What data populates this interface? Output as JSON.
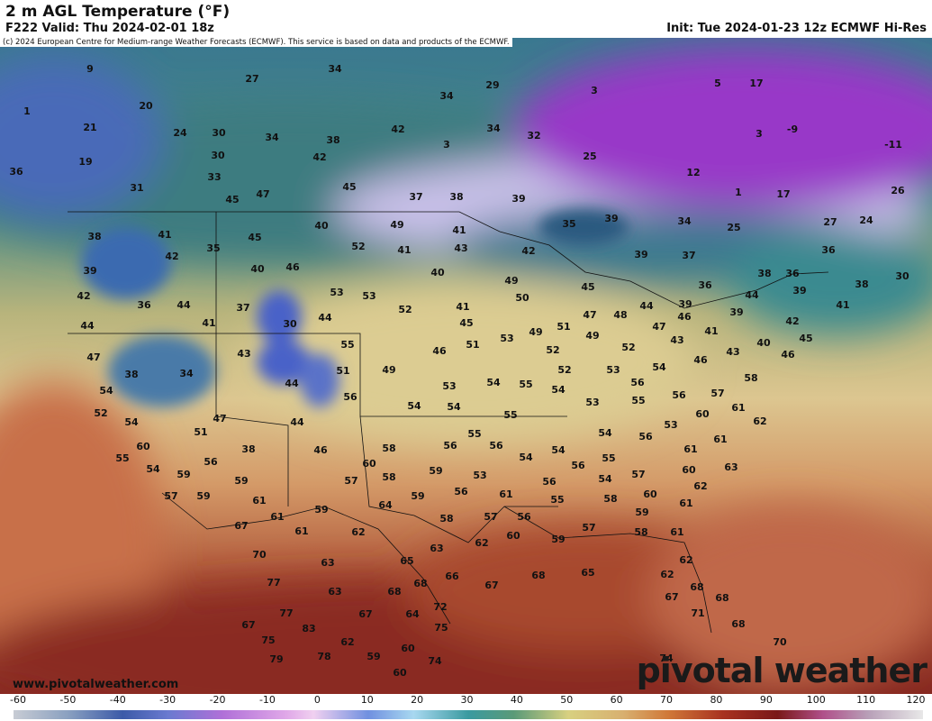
{
  "header": {
    "title": "2 m AGL Temperature (°F)",
    "valid": "F222 Valid: Thu 2024-02-01 18z",
    "init": "Init: Tue 2024-01-23 12z ECMWF Hi-Res",
    "copyright": "(c) 2024 European Centre for Medium-range Weather Forecasts (ECMWF). This service is based on data and products of the ECMWF."
  },
  "map": {
    "labels": [
      9,
      34,
      27,
      1,
      20,
      21,
      24,
      30,
      19,
      30,
      34,
      33,
      31,
      36,
      45,
      47,
      42,
      38,
      45,
      37,
      38,
      39,
      42,
      34,
      29,
      34,
      32,
      25,
      3,
      5,
      17,
      3,
      -9,
      -11,
      12,
      1,
      17,
      26,
      24,
      27,
      25,
      34,
      39,
      35,
      3,
      39,
      37,
      38,
      36,
      36,
      39,
      41,
      38,
      30,
      36,
      39,
      39,
      44,
      42,
      45,
      40,
      46,
      38,
      41,
      35,
      42,
      45,
      40,
      49,
      41,
      52,
      41,
      43,
      42,
      46,
      40,
      40,
      39,
      42,
      36,
      44,
      37,
      41,
      30,
      53,
      53,
      52,
      44,
      41,
      45,
      49,
      50,
      45,
      47,
      48,
      44,
      47,
      46,
      41,
      44,
      55,
      51,
      46,
      53,
      49,
      51,
      49,
      52,
      52,
      43,
      43,
      47,
      43,
      51,
      49,
      52,
      53,
      54,
      46,
      38,
      34,
      54,
      44,
      56,
      53,
      54,
      55,
      54,
      56,
      58,
      57,
      52,
      54,
      54,
      55,
      53,
      55,
      56,
      61,
      60,
      62,
      47,
      44,
      54,
      55,
      56,
      56,
      58,
      54,
      54,
      54,
      56,
      53,
      61,
      61,
      51,
      60,
      38,
      46,
      55,
      54,
      56,
      59,
      60,
      59,
      53,
      56,
      55,
      56,
      57,
      60,
      63,
      62,
      59,
      58,
      57,
      56,
      61,
      59,
      54,
      55,
      58,
      60,
      61,
      57,
      59,
      61,
      64,
      59,
      61,
      58,
      57,
      56,
      59,
      67,
      61,
      62,
      60,
      57,
      58,
      59,
      61,
      62,
      63,
      70,
      63,
      65,
      66,
      68,
      65,
      62,
      77,
      63,
      68,
      68,
      67,
      62,
      68,
      72,
      67,
      68,
      77,
      67,
      64,
      71,
      67,
      83,
      75,
      68,
      75,
      62,
      60,
      70,
      78,
      59,
      79,
      74,
      74,
      60
    ]
  },
  "colorbar": {
    "lim": [
      -60,
      120
    ],
    "ticks": [
      -60,
      -50,
      -40,
      -30,
      -20,
      -10,
      0,
      10,
      20,
      30,
      40,
      50,
      60,
      70,
      80,
      90,
      100,
      110,
      120
    ]
  },
  "footer": {
    "website": "www.pivotalweather.com",
    "watermark": "pivotal weather"
  }
}
